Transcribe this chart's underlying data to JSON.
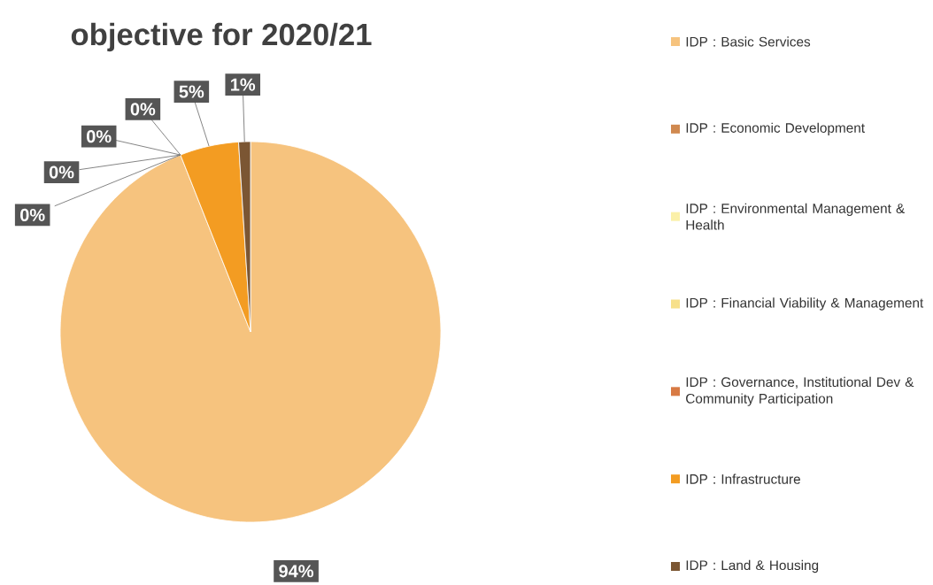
{
  "chart_data": {
    "type": "pie",
    "title": "objective for 2020/21",
    "categories": [
      "IDP : Basic Services",
      "IDP : Economic Development",
      "IDP : Environmental Management & Health",
      "IDP : Financial Viability & Management",
      "IDP : Governance, Institutional Dev & Community Participation",
      "IDP : Infrastructure",
      "IDP : Land & Housing"
    ],
    "values": [
      94,
      0,
      0,
      0,
      0,
      5,
      1
    ],
    "value_labels": [
      "94%",
      "0%",
      "0%",
      "0%",
      "0%",
      "5%",
      "1%"
    ],
    "colors": [
      "#f6c37e",
      "#d0894f",
      "#fbf0a8",
      "#f7e08a",
      "#d87a44",
      "#f39c22",
      "#7b5633"
    ],
    "legend": "right"
  }
}
